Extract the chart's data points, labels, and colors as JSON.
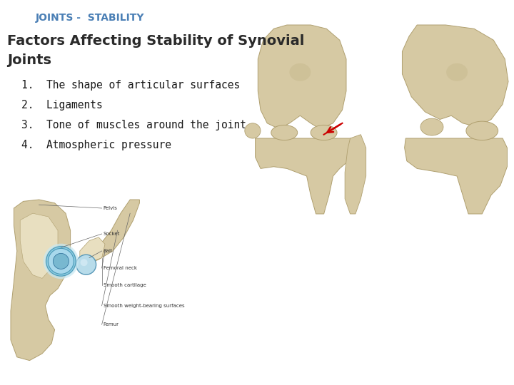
{
  "background_color": "#ffffff",
  "title": "JOINTS -  STABILITY",
  "title_color": "#4a7fb5",
  "title_fontsize": 10,
  "subtitle_line1": "Factors Affecting Stability of Synovial",
  "subtitle_line2": "Joints",
  "subtitle_color": "#2a2a2a",
  "subtitle_fontsize": 14,
  "items": [
    "1.  The shape of articular surfaces",
    "2.  Ligaments",
    "3.  Tone of muscles around the joint.",
    "4.  Atmospheric pressure"
  ],
  "items_color": "#1a1a1a",
  "items_fontsize": 10.5,
  "bone_color": "#d6c9a3",
  "bone_edge": "#b0a070",
  "bone_light": "#e8dfc0",
  "bone_shadow": "#9a8850",
  "socket_blue": "#8dcbe0",
  "socket_dark": "#4a9ab8",
  "ball_blue": "#b8dcea",
  "cartilage_blue": "#c8e8f2",
  "red_arrow": "#cc0000",
  "label_color": "#333333",
  "label_fontsize": 5.0,
  "line_color": "#666666"
}
